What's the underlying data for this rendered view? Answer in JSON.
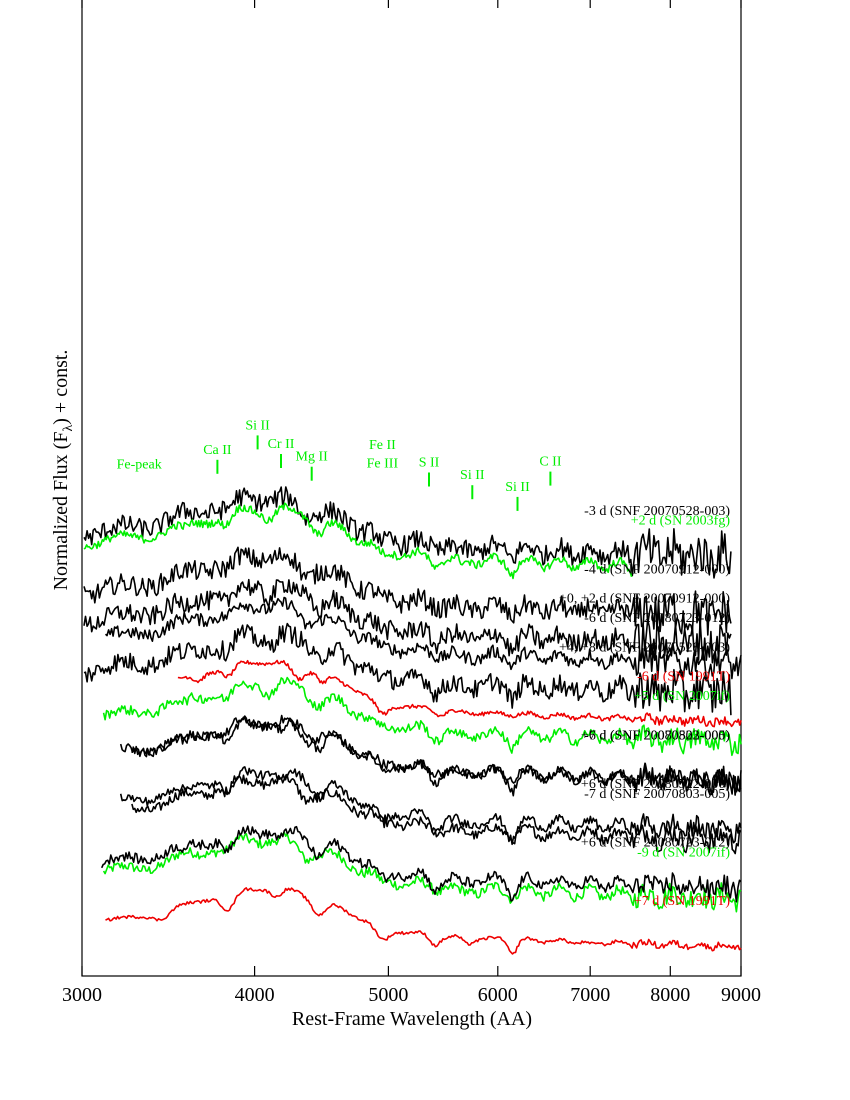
{
  "chart_data": {
    "type": "line",
    "title": "",
    "xlabel": "Rest-Frame Wavelength (AA)",
    "ylabel": "Normalized Flux (Fλ) + const.",
    "ylabel_parts": {
      "pre": "Normalized Flux (F",
      "sub": "λ",
      "post": ") + const."
    },
    "x_scale": "log",
    "xlim": [
      3000,
      9000
    ],
    "x_ticks": [
      3000,
      4000,
      5000,
      6000,
      7000,
      8000,
      9000
    ],
    "x_tick_labels": [
      "3000",
      "4000",
      "5000",
      "6000",
      "7000",
      "8000",
      "9000"
    ],
    "y_ticks": "none",
    "grid": false,
    "legend": "none",
    "colors": {
      "green": "#00ee00",
      "red": "#ee0000",
      "black": "#000000"
    },
    "series": [
      {
        "name": "-9 d (SN 2007if)",
        "color": "green",
        "x_range": [
          3110,
          9000
        ],
        "y_start": 0.98,
        "y_end": 0.1,
        "profile": "early",
        "noise": 0.01
      },
      {
        "name": "-7 d (SNF 20070803-005)",
        "color": "black",
        "x_range": [
          3260,
          9000
        ],
        "y_start": 0.87,
        "y_end": 0.16,
        "profile": "early",
        "noise": 0.01
      },
      {
        "name": "-7 d (SNF 20080522-000)",
        "color": "black",
        "x_range": [
          3200,
          9000
        ],
        "y_start": 0.82,
        "y_end": 0.22,
        "profile": "early",
        "noise": 0.01
      },
      {
        "name": "-6 d (SN 1991T)",
        "color": "red",
        "x_range": [
          3520,
          9000
        ],
        "y_start": 0.74,
        "y_end": 0.28,
        "profile": "t91",
        "noise": 0.004
      },
      {
        "name": "-6 d (SNF 20080723-012)",
        "color": "black",
        "x_range": [
          3120,
          9000
        ],
        "y_start": 0.69,
        "y_end": 0.34,
        "profile": "early",
        "noise": 0.013
      },
      {
        "name": "-4 d (SNF 20070912-000)",
        "color": "black",
        "x_range": [
          3010,
          8850
        ],
        "y_start": 0.61,
        "y_end": 0.39,
        "profile": "early",
        "noise": 0.02
      },
      {
        "name": "-3 d (SNF 20070528-003)",
        "color": "black",
        "x_range": [
          3010,
          8850
        ],
        "y_start": 0.55,
        "y_end": 0.45,
        "profile": "early",
        "noise": 0.02
      },
      {
        "name": "+2 d (SN 2003fg)",
        "color": "green",
        "x_range": [
          3010,
          7500
        ],
        "y_start": 0.44,
        "y_end": 0.56,
        "profile": "max",
        "noise": 0.008
      },
      {
        "name": "+0, +2 d (SNF 20070912-000)",
        "color": "black",
        "x_range": [
          3010,
          8850
        ],
        "y_start": 0.36,
        "y_end": 0.61,
        "profile": "max",
        "noise": 0.02
      },
      {
        "name": "+4, +8 d (SNF 20070528-003)",
        "color": "black",
        "x_range": [
          3010,
          8850
        ],
        "y_start": 0.31,
        "y_end": 0.67,
        "profile": "max",
        "noise": 0.02
      },
      {
        "name": "+5 d (SN 2007if)",
        "color": "green",
        "x_range": [
          3110,
          9000
        ],
        "y_start": 0.26,
        "y_end": 0.72,
        "profile": "max",
        "noise": 0.01
      },
      {
        "name": "+6 d (SNF 20070803-005)",
        "color": "black",
        "x_range": [
          3260,
          9000
        ],
        "y_start": 0.22,
        "y_end": 0.78,
        "profile": "post",
        "noise": 0.009
      },
      {
        "name": "+6 d (SNF 20080522-000)",
        "color": "black",
        "x_range": [
          3200,
          9000
        ],
        "y_start": 0.17,
        "y_end": 0.84,
        "profile": "post",
        "noise": 0.009
      },
      {
        "name": "+6 d (SNF 20080723-012)",
        "color": "black",
        "x_range": [
          3100,
          9000
        ],
        "y_start": 0.11,
        "y_end": 0.9,
        "profile": "post",
        "noise": 0.01
      },
      {
        "name": "+7 d (SN 1991T)",
        "color": "red",
        "x_range": [
          3120,
          9000
        ],
        "y_start": 0.05,
        "y_end": 0.96,
        "profile": "t91post",
        "noise": 0.003
      }
    ],
    "annotations": [
      {
        "text": "Fe-peak",
        "x": 3300,
        "y": 0.52,
        "color": "green",
        "marker": false
      },
      {
        "text": "Ca II",
        "x": 3760,
        "y": 0.535,
        "color": "green",
        "marker": true
      },
      {
        "text": "Si II",
        "x": 4020,
        "y": 0.56,
        "color": "green",
        "marker": true
      },
      {
        "text": "Cr II",
        "x": 4180,
        "y": 0.541,
        "color": "green",
        "marker": true
      },
      {
        "text": "Mg II",
        "x": 4400,
        "y": 0.528,
        "color": "green",
        "marker": true
      },
      {
        "text": "Fe II",
        "x": 4950,
        "y": 0.54,
        "color": "green",
        "marker": false
      },
      {
        "text": "Fe III",
        "x": 4950,
        "y": 0.521,
        "color": "green",
        "marker": false
      },
      {
        "text": "S II",
        "x": 5350,
        "y": 0.522,
        "color": "green",
        "marker": true
      },
      {
        "text": "Si II",
        "x": 5750,
        "y": 0.509,
        "color": "green",
        "marker": true
      },
      {
        "text": "Si II",
        "x": 6200,
        "y": 0.497,
        "color": "green",
        "marker": true
      },
      {
        "text": "C II",
        "x": 6550,
        "y": 0.523,
        "color": "green",
        "marker": true
      }
    ]
  }
}
